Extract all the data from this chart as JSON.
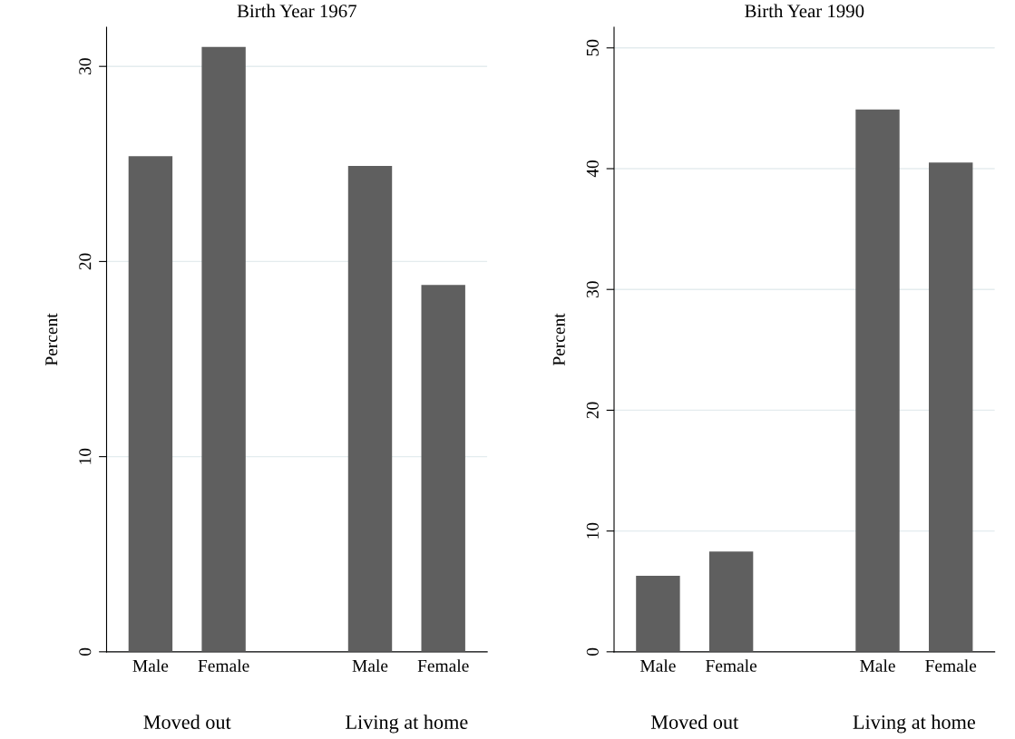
{
  "chart_data": [
    {
      "type": "bar",
      "title": "Birth Year 1967",
      "ylabel": "Percent",
      "categories": [
        "Male",
        "Female",
        null,
        "Male",
        "Female"
      ],
      "values": [
        25.4,
        31.0,
        null,
        24.9,
        18.8
      ],
      "color": "#5f5f5f",
      "ylim": [
        0,
        32
      ],
      "yticks": [
        0,
        10,
        20,
        30
      ],
      "grid": "y",
      "annotations": [
        "Moved out",
        "Living at home"
      ]
    },
    {
      "type": "bar",
      "title": "Birth Year 1990",
      "ylabel": "Percent",
      "categories": [
        "Male",
        "Female",
        null,
        "Male",
        "Female"
      ],
      "values": [
        6.3,
        8.3,
        null,
        44.9,
        40.5
      ],
      "color": "#5f5f5f",
      "ylim": [
        0,
        51.7
      ],
      "yticks": [
        0,
        10,
        20,
        30,
        40,
        50
      ],
      "grid": "y",
      "annotations": [
        "Moved out",
        "Living at home"
      ]
    }
  ]
}
